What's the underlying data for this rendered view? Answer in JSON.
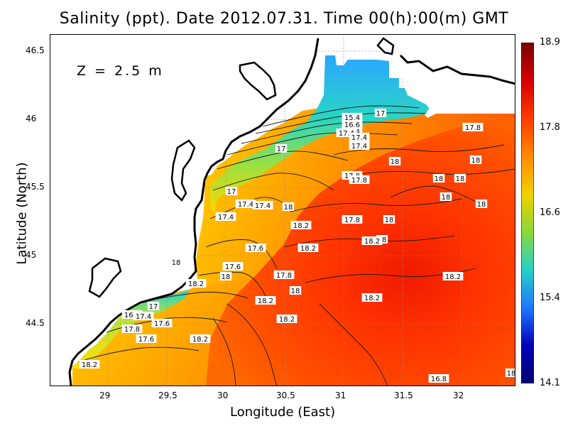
{
  "map": {
    "title": "Salinity (ppt). Date 2012.07.31. Time 00(h):00(m) GMT",
    "xlabel": "Longitude (East)",
    "ylabel": "Latitude (North)",
    "depth_label": "Z = 2.5 m",
    "x_ticks": [
      "29",
      "29.5",
      "30",
      "30.5",
      "31",
      "31.5",
      "32"
    ],
    "y_ticks": [
      "46.5",
      "46",
      "45.5",
      "45",
      "44.5"
    ],
    "colorbar_ticks": [
      "18.9",
      "17.8",
      "16.6",
      "15.4",
      "14.1"
    ],
    "colorbar_colors": [
      "#7a0000",
      "#d40000",
      "#ff3b00",
      "#ff8a00",
      "#f2d000",
      "#8ad838",
      "#27d0c8",
      "#1e78ff",
      "#0000b8",
      "#000070"
    ],
    "contour_labels": [
      "17",
      "15.4",
      "16.6",
      "17.4",
      "17.4",
      "17.4",
      "17.8",
      "17",
      "17.4",
      "17.8",
      "17.8",
      "18",
      "18",
      "18",
      "18",
      "18",
      "18",
      "17",
      "17.4",
      "17.4",
      "17.4",
      "18",
      "17.8",
      "18",
      "18",
      "18.2",
      "18.2",
      "17.6",
      "18.2",
      "17.6",
      "18",
      "17.8",
      "18.2",
      "18",
      "18.2",
      "18.2",
      "18.2",
      "18.2",
      "16.8",
      "17",
      "16.8",
      "17.4",
      "17.8",
      "17.6",
      "18.2",
      "17.6",
      "18.2",
      "18",
      "18"
    ]
  }
}
